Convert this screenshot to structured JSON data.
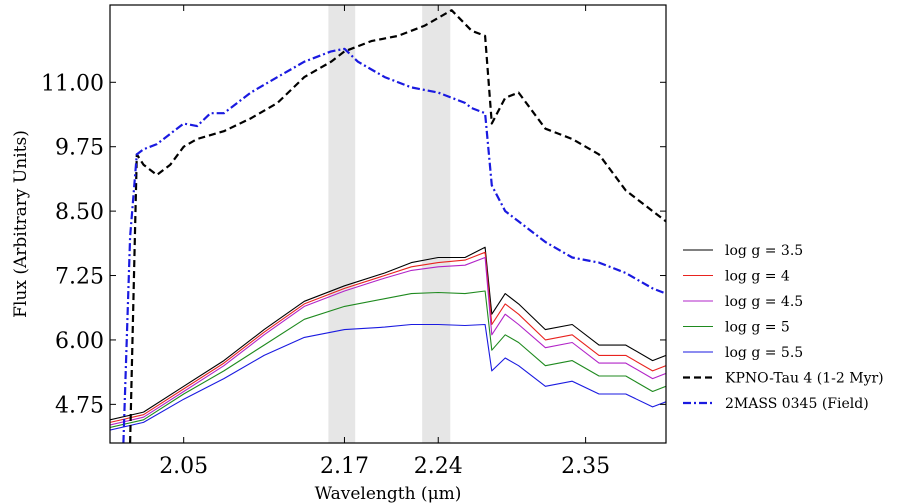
{
  "chart_data": {
    "type": "line",
    "title": "",
    "xlabel": "Wavelength (μm)",
    "ylabel": "Flux (Arbitrary Units)",
    "xlim": [
      1.995,
      2.41
    ],
    "ylim": [
      4.0,
      12.5
    ],
    "xticks": [
      2.05,
      2.17,
      2.24,
      2.35
    ],
    "xtick_labels": [
      "2.05",
      "2.17",
      "2.24",
      "2.35"
    ],
    "yticks": [
      4.75,
      6.0,
      7.25,
      8.5,
      9.75,
      11.0
    ],
    "ytick_labels": [
      "4.75",
      "6.00",
      "7.25",
      "8.50",
      "9.75",
      "11.00"
    ],
    "shaded_bands": [
      [
        2.158,
        2.178
      ],
      [
        2.228,
        2.249
      ]
    ],
    "grid": false,
    "legend_position": "right",
    "series": [
      {
        "name": "log g = 3.5",
        "color": "#000000",
        "style": "solid",
        "x": [
          1.995,
          2.02,
          2.05,
          2.08,
          2.11,
          2.14,
          2.17,
          2.2,
          2.22,
          2.24,
          2.26,
          2.275,
          2.28,
          2.29,
          2.3,
          2.32,
          2.34,
          2.36,
          2.38,
          2.4,
          2.41
        ],
        "y": [
          4.45,
          4.6,
          5.1,
          5.6,
          6.2,
          6.75,
          7.05,
          7.3,
          7.5,
          7.6,
          7.6,
          7.8,
          6.5,
          6.9,
          6.7,
          6.2,
          6.3,
          5.9,
          5.9,
          5.6,
          5.7
        ]
      },
      {
        "name": "log g = 4",
        "color": "#e8231f",
        "style": "solid",
        "x": [
          1.995,
          2.02,
          2.05,
          2.08,
          2.11,
          2.14,
          2.17,
          2.2,
          2.22,
          2.24,
          2.26,
          2.275,
          2.28,
          2.29,
          2.3,
          2.32,
          2.34,
          2.36,
          2.38,
          2.4,
          2.41
        ],
        "y": [
          4.4,
          4.55,
          5.05,
          5.55,
          6.15,
          6.7,
          7.0,
          7.25,
          7.42,
          7.5,
          7.55,
          7.7,
          6.3,
          6.7,
          6.5,
          6.0,
          6.1,
          5.7,
          5.7,
          5.4,
          5.5
        ]
      },
      {
        "name": "log g = 4.5",
        "color": "#b224c8",
        "style": "solid",
        "x": [
          1.995,
          2.02,
          2.05,
          2.08,
          2.11,
          2.14,
          2.17,
          2.2,
          2.22,
          2.24,
          2.26,
          2.275,
          2.28,
          2.29,
          2.3,
          2.32,
          2.34,
          2.36,
          2.38,
          2.4,
          2.41
        ],
        "y": [
          4.35,
          4.5,
          5.0,
          5.5,
          6.1,
          6.65,
          6.95,
          7.2,
          7.35,
          7.42,
          7.45,
          7.6,
          6.1,
          6.5,
          6.3,
          5.85,
          5.95,
          5.55,
          5.55,
          5.25,
          5.35
        ]
      },
      {
        "name": "log g = 5",
        "color": "#1f8a1f",
        "style": "solid",
        "x": [
          1.995,
          2.02,
          2.05,
          2.08,
          2.11,
          2.14,
          2.17,
          2.2,
          2.22,
          2.24,
          2.26,
          2.275,
          2.28,
          2.29,
          2.3,
          2.32,
          2.34,
          2.36,
          2.38,
          2.4,
          2.41
        ],
        "y": [
          4.3,
          4.45,
          4.95,
          5.4,
          5.9,
          6.4,
          6.65,
          6.8,
          6.9,
          6.92,
          6.9,
          6.95,
          5.8,
          6.1,
          5.95,
          5.5,
          5.6,
          5.3,
          5.3,
          5.0,
          5.1
        ]
      },
      {
        "name": "log g = 5.5",
        "color": "#1a1ae0",
        "style": "solid",
        "x": [
          1.995,
          2.02,
          2.05,
          2.08,
          2.11,
          2.14,
          2.17,
          2.2,
          2.22,
          2.24,
          2.26,
          2.275,
          2.28,
          2.29,
          2.3,
          2.32,
          2.34,
          2.36,
          2.38,
          2.4,
          2.41
        ],
        "y": [
          4.25,
          4.4,
          4.85,
          5.25,
          5.7,
          6.05,
          6.2,
          6.25,
          6.3,
          6.3,
          6.28,
          6.3,
          5.4,
          5.65,
          5.5,
          5.1,
          5.2,
          4.95,
          4.95,
          4.7,
          4.8
        ]
      },
      {
        "name": "KPNO-Tau 4 (1-2 Myr)",
        "color": "#000000",
        "style": "dashed",
        "x": [
          2.01,
          2.015,
          2.02,
          2.03,
          2.04,
          2.05,
          2.06,
          2.08,
          2.1,
          2.12,
          2.14,
          2.16,
          2.17,
          2.19,
          2.21,
          2.23,
          2.25,
          2.265,
          2.275,
          2.28,
          2.29,
          2.3,
          2.32,
          2.34,
          2.36,
          2.38,
          2.4,
          2.41
        ],
        "y": [
          4.0,
          9.6,
          9.4,
          9.2,
          9.4,
          9.75,
          9.9,
          10.05,
          10.3,
          10.6,
          11.1,
          11.4,
          11.6,
          11.8,
          11.9,
          12.1,
          12.4,
          12.0,
          11.9,
          10.2,
          10.7,
          10.8,
          10.1,
          9.9,
          9.6,
          8.9,
          8.5,
          8.3
        ]
      },
      {
        "name": "2MASS 0345 (Field)",
        "color": "#1a1ae0",
        "style": "dashdot",
        "x": [
          2.005,
          2.01,
          2.015,
          2.02,
          2.03,
          2.04,
          2.05,
          2.06,
          2.07,
          2.08,
          2.1,
          2.12,
          2.14,
          2.16,
          2.17,
          2.18,
          2.2,
          2.22,
          2.24,
          2.26,
          2.265,
          2.275,
          2.28,
          2.29,
          2.3,
          2.32,
          2.34,
          2.36,
          2.38,
          2.4,
          2.41
        ],
        "y": [
          4.0,
          8.0,
          9.6,
          9.7,
          9.8,
          10.0,
          10.2,
          10.15,
          10.4,
          10.4,
          10.8,
          11.1,
          11.4,
          11.6,
          11.65,
          11.4,
          11.1,
          10.9,
          10.8,
          10.6,
          10.5,
          10.4,
          9.0,
          8.5,
          8.3,
          7.9,
          7.6,
          7.5,
          7.3,
          7.0,
          6.9
        ]
      }
    ]
  }
}
